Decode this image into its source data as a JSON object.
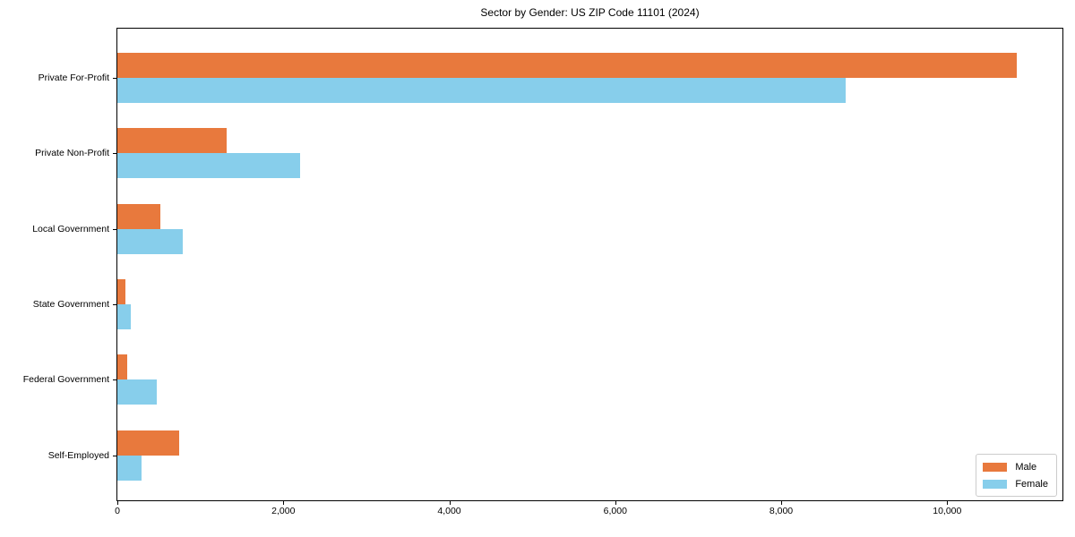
{
  "chart_data": {
    "type": "bar",
    "orientation": "horizontal",
    "title": "Sector by Gender: US ZIP Code 11101 (2024)",
    "categories": [
      "Private For-Profit",
      "Private Non-Profit",
      "Local Government",
      "State Government",
      "Federal Government",
      "Self-Employed"
    ],
    "series": [
      {
        "name": "Male",
        "color": "#e8793d",
        "values": [
          10840,
          1320,
          515,
          100,
          120,
          745
        ]
      },
      {
        "name": "Female",
        "color": "#87ceeb",
        "values": [
          8775,
          2200,
          785,
          165,
          470,
          290
        ]
      }
    ],
    "xlabel": "",
    "ylabel": "",
    "xlim": [
      0,
      11390
    ],
    "xticks": {
      "values": [
        0,
        2000,
        4000,
        6000,
        8000,
        10000
      ],
      "labels": [
        "0",
        "2,000",
        "4,000",
        "6,000",
        "8,000",
        "10,000"
      ]
    },
    "grid": false,
    "legend": {
      "position": "lower right"
    }
  }
}
